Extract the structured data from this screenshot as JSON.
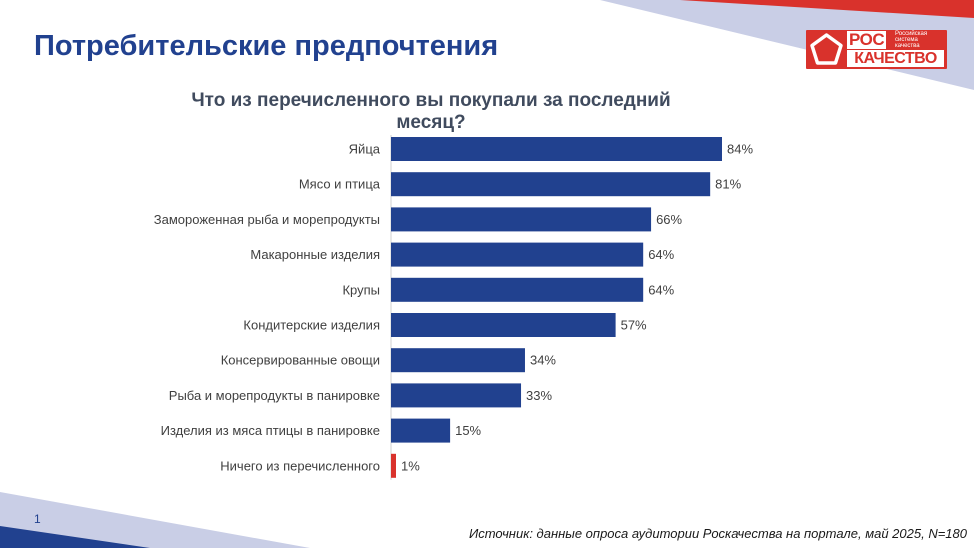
{
  "slide": {
    "title": "Потребительские предпочтения",
    "page_number": "1",
    "source": "Источник: данные опроса аудитории Роскачества на портале, май 2025, N=180"
  },
  "logo": {
    "top_text": "РОС",
    "side_text": "Российская\nсистема\nкачества",
    "bottom_text": "КАЧЕСТВО"
  },
  "colors": {
    "primary_bar": "#21418f",
    "highlight_bar": "#d9322c",
    "title_blue": "#21418f"
  },
  "chart_data": {
    "type": "bar",
    "orientation": "horizontal",
    "title": "Что из перечисленного вы покупали за последний месяц?",
    "categories": [
      "Яйца",
      "Мясо и птица",
      "Замороженная рыба и морепродукты",
      "Макаронные изделия",
      "Крупы",
      "Кондитерские изделия",
      "Консервированные овощи",
      "Рыба и морепродукты в панировке",
      "Изделия из мяса птицы в панировке",
      "Ничего из перечисленного"
    ],
    "values": [
      84,
      81,
      66,
      64,
      64,
      57,
      34,
      33,
      15,
      1
    ],
    "data_labels": [
      "84%",
      "81%",
      "66%",
      "64%",
      "64%",
      "57%",
      "34%",
      "33%",
      "15%",
      "1%"
    ],
    "unit": "%",
    "highlighted_category": "Ничего из перечисленного",
    "grid": false,
    "legend": "none"
  }
}
